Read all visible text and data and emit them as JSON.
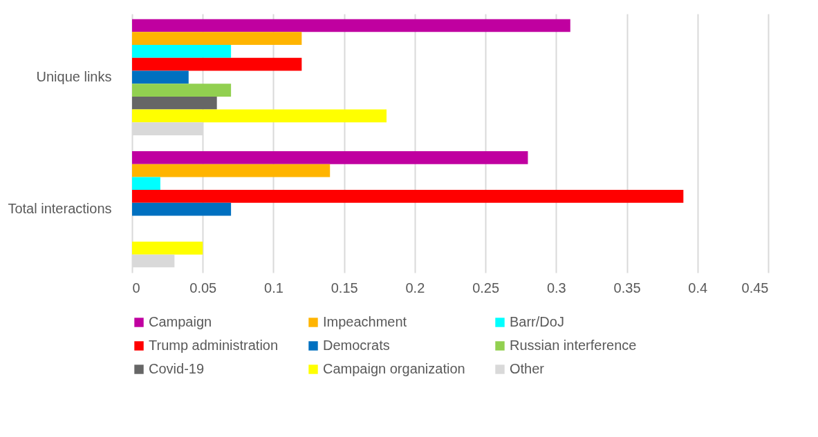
{
  "chart_data": {
    "type": "bar",
    "orientation": "horizontal",
    "categories": [
      "Unique links",
      "Total interactions"
    ],
    "series": [
      {
        "name": "Campaign",
        "color": "#c000a0",
        "values": [
          0.31,
          0.28
        ]
      },
      {
        "name": "Impeachment",
        "color": "#ffb400",
        "values": [
          0.12,
          0.14
        ]
      },
      {
        "name": "Barr/DoJ",
        "color": "#00ffff",
        "values": [
          0.07,
          0.02
        ]
      },
      {
        "name": "Trump administration",
        "color": "#ff0000",
        "values": [
          0.12,
          0.39
        ]
      },
      {
        "name": "Democrats",
        "color": "#0070c0",
        "values": [
          0.04,
          0.07
        ]
      },
      {
        "name": "Russian interference",
        "color": "#92d050",
        "values": [
          0.07,
          0
        ]
      },
      {
        "name": "Covid-19",
        "color": "#666666",
        "values": [
          0.06,
          0
        ]
      },
      {
        "name": "Campaign organization",
        "color": "#ffff00",
        "values": [
          0.18,
          0.05
        ]
      },
      {
        "name": "Other",
        "color": "#d9d9d9",
        "values": [
          0.05,
          0.03
        ]
      }
    ],
    "xlim": [
      0,
      0.45
    ],
    "xticks": [
      0,
      0.05,
      0.1,
      0.15,
      0.2,
      0.25,
      0.3,
      0.35,
      0.4,
      0.45
    ],
    "grid": "x",
    "legend": "bottom"
  }
}
